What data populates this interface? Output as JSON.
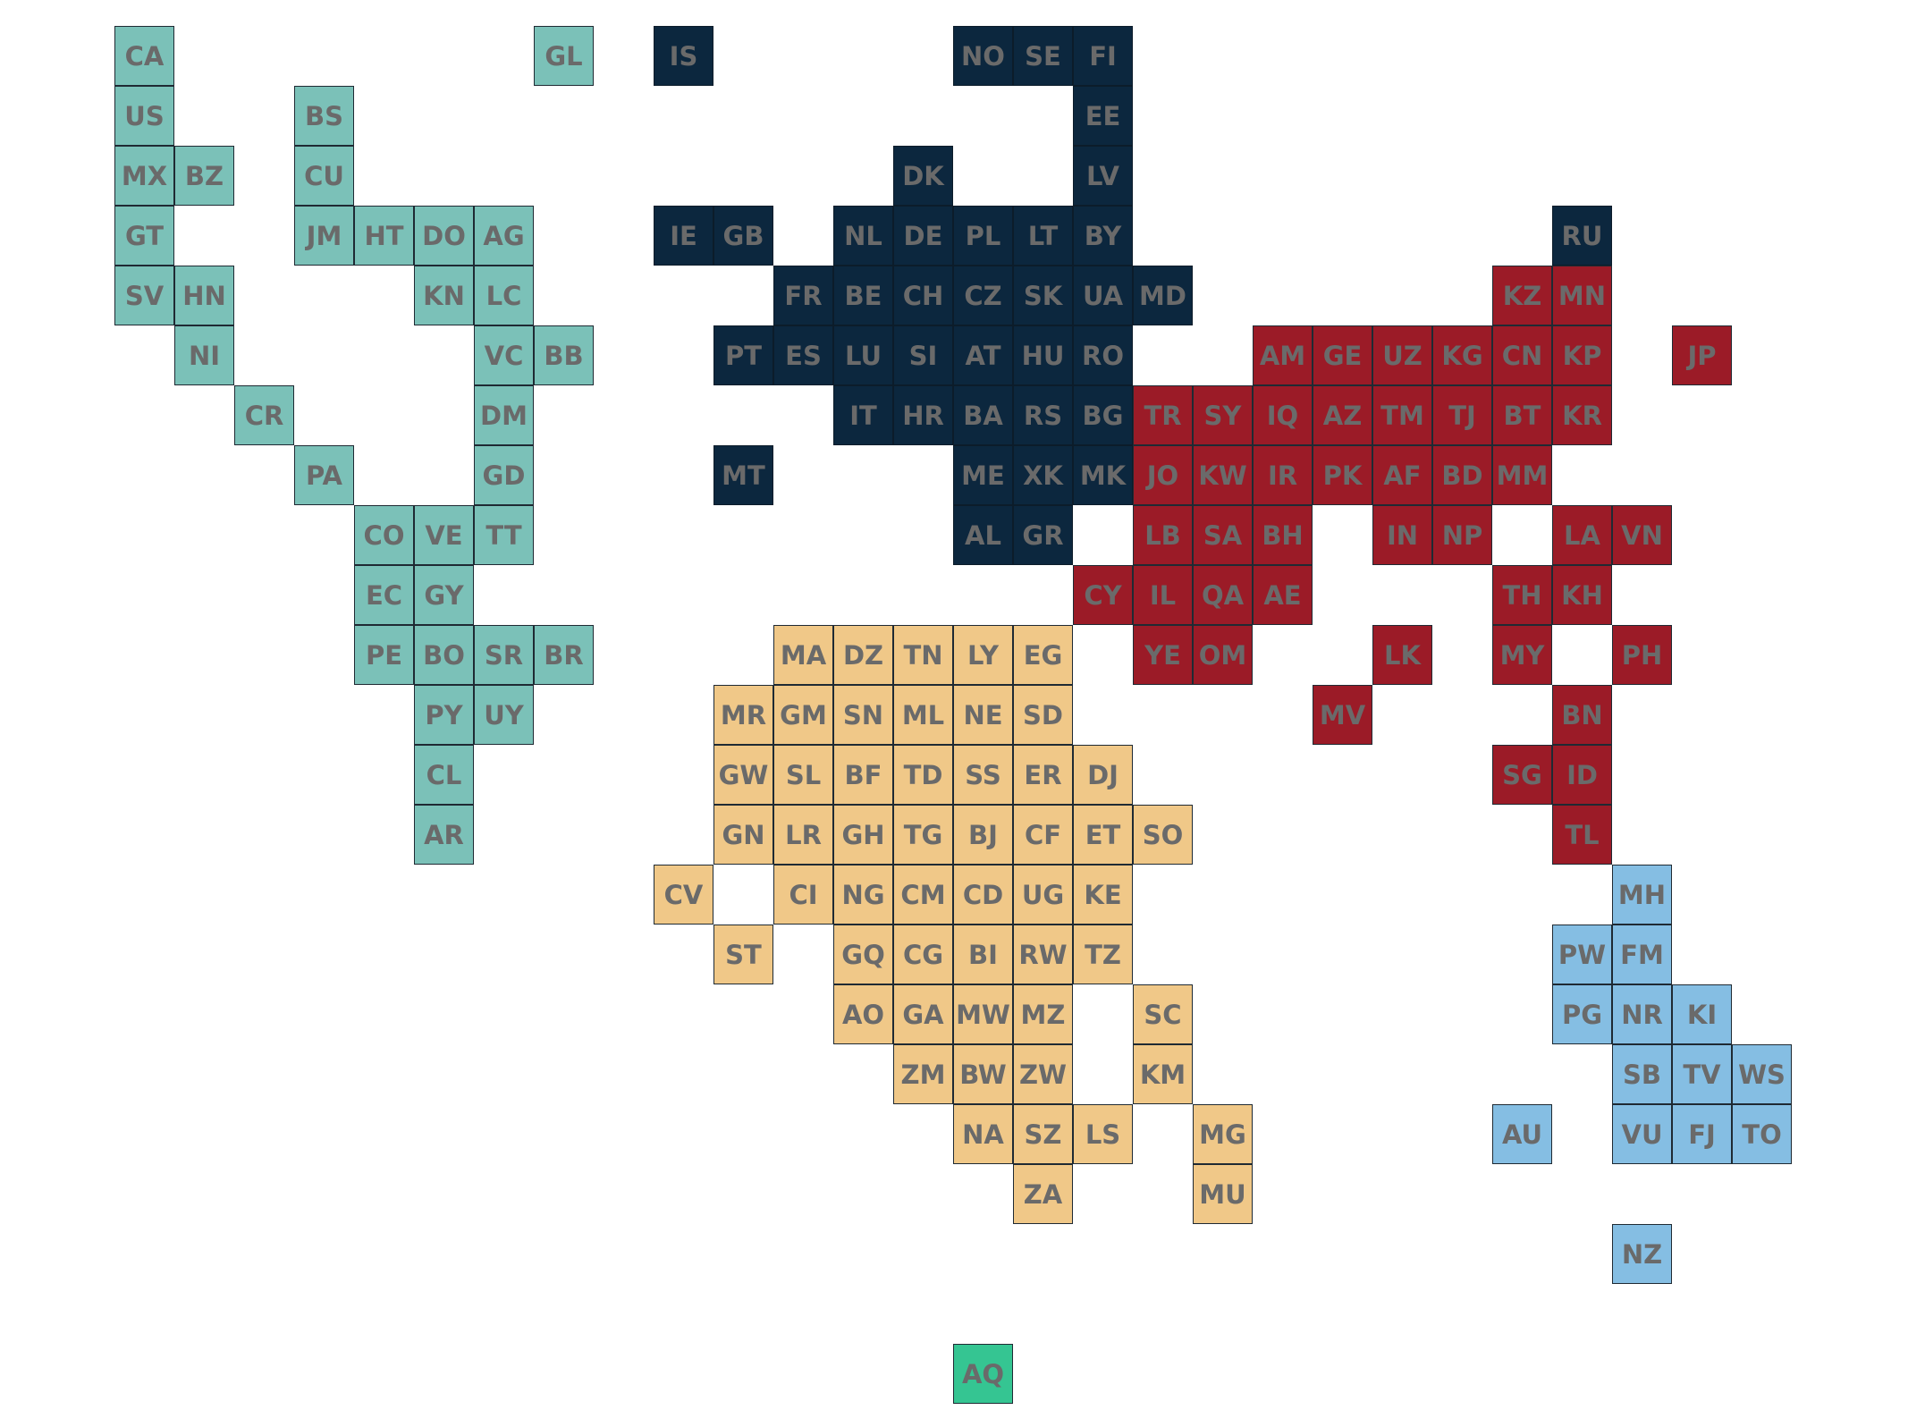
{
  "colors": {
    "americas": "#7bc1b8",
    "europe": "#0c273e",
    "asia": "#9b1b27",
    "africa": "#f0c888",
    "oceania": "#85bee3",
    "antarctica": "#35c592",
    "label": "#6a6a6a"
  },
  "groups": [
    {
      "region": "americas",
      "tiles": [
        {
          "code": "CA",
          "col": 1,
          "row": 0
        },
        {
          "code": "GL",
          "col": 8,
          "row": 0
        },
        {
          "code": "US",
          "col": 1,
          "row": 1
        },
        {
          "code": "BS",
          "col": 4,
          "row": 1
        },
        {
          "code": "MX",
          "col": 1,
          "row": 2
        },
        {
          "code": "BZ",
          "col": 2,
          "row": 2
        },
        {
          "code": "CU",
          "col": 4,
          "row": 2
        },
        {
          "code": "GT",
          "col": 1,
          "row": 3
        },
        {
          "code": "JM",
          "col": 4,
          "row": 3
        },
        {
          "code": "HT",
          "col": 5,
          "row": 3
        },
        {
          "code": "DO",
          "col": 6,
          "row": 3
        },
        {
          "code": "AG",
          "col": 7,
          "row": 3
        },
        {
          "code": "SV",
          "col": 1,
          "row": 4
        },
        {
          "code": "HN",
          "col": 2,
          "row": 4
        },
        {
          "code": "KN",
          "col": 6,
          "row": 4
        },
        {
          "code": "LC",
          "col": 7,
          "row": 4
        },
        {
          "code": "NI",
          "col": 2,
          "row": 5
        },
        {
          "code": "VC",
          "col": 7,
          "row": 5
        },
        {
          "code": "BB",
          "col": 8,
          "row": 5
        },
        {
          "code": "CR",
          "col": 3,
          "row": 6
        },
        {
          "code": "DM",
          "col": 7,
          "row": 6
        },
        {
          "code": "PA",
          "col": 4,
          "row": 7
        },
        {
          "code": "GD",
          "col": 7,
          "row": 7
        },
        {
          "code": "CO",
          "col": 5,
          "row": 8
        },
        {
          "code": "VE",
          "col": 6,
          "row": 8
        },
        {
          "code": "TT",
          "col": 7,
          "row": 8
        },
        {
          "code": "EC",
          "col": 5,
          "row": 9
        },
        {
          "code": "GY",
          "col": 6,
          "row": 9
        },
        {
          "code": "PE",
          "col": 5,
          "row": 10
        },
        {
          "code": "BO",
          "col": 6,
          "row": 10
        },
        {
          "code": "SR",
          "col": 7,
          "row": 10
        },
        {
          "code": "BR",
          "col": 8,
          "row": 10
        },
        {
          "code": "PY",
          "col": 6,
          "row": 11
        },
        {
          "code": "UY",
          "col": 7,
          "row": 11
        },
        {
          "code": "CL",
          "col": 6,
          "row": 12
        },
        {
          "code": "AR",
          "col": 6,
          "row": 13
        }
      ]
    },
    {
      "region": "europe",
      "tiles": [
        {
          "code": "IS",
          "col": 10,
          "row": 0
        },
        {
          "code": "NO",
          "col": 15,
          "row": 0
        },
        {
          "code": "SE",
          "col": 16,
          "row": 0
        },
        {
          "code": "FI",
          "col": 17,
          "row": 0
        },
        {
          "code": "EE",
          "col": 17,
          "row": 1
        },
        {
          "code": "DK",
          "col": 14,
          "row": 2
        },
        {
          "code": "LV",
          "col": 17,
          "row": 2
        },
        {
          "code": "IE",
          "col": 10,
          "row": 3
        },
        {
          "code": "GB",
          "col": 11,
          "row": 3
        },
        {
          "code": "NL",
          "col": 13,
          "row": 3
        },
        {
          "code": "DE",
          "col": 14,
          "row": 3
        },
        {
          "code": "PL",
          "col": 15,
          "row": 3
        },
        {
          "code": "LT",
          "col": 16,
          "row": 3
        },
        {
          "code": "BY",
          "col": 17,
          "row": 3
        },
        {
          "code": "RU",
          "col": 25,
          "row": 3
        },
        {
          "code": "FR",
          "col": 12,
          "row": 4
        },
        {
          "code": "BE",
          "col": 13,
          "row": 4
        },
        {
          "code": "CH",
          "col": 14,
          "row": 4
        },
        {
          "code": "CZ",
          "col": 15,
          "row": 4
        },
        {
          "code": "SK",
          "col": 16,
          "row": 4
        },
        {
          "code": "UA",
          "col": 17,
          "row": 4
        },
        {
          "code": "MD",
          "col": 18,
          "row": 4
        },
        {
          "code": "PT",
          "col": 11,
          "row": 5
        },
        {
          "code": "ES",
          "col": 12,
          "row": 5
        },
        {
          "code": "LU",
          "col": 13,
          "row": 5
        },
        {
          "code": "SI",
          "col": 14,
          "row": 5
        },
        {
          "code": "AT",
          "col": 15,
          "row": 5
        },
        {
          "code": "HU",
          "col": 16,
          "row": 5
        },
        {
          "code": "RO",
          "col": 17,
          "row": 5
        },
        {
          "code": "IT",
          "col": 13,
          "row": 6
        },
        {
          "code": "HR",
          "col": 14,
          "row": 6
        },
        {
          "code": "BA",
          "col": 15,
          "row": 6
        },
        {
          "code": "RS",
          "col": 16,
          "row": 6
        },
        {
          "code": "BG",
          "col": 17,
          "row": 6
        },
        {
          "code": "MT",
          "col": 11,
          "row": 7
        },
        {
          "code": "ME",
          "col": 15,
          "row": 7
        },
        {
          "code": "XK",
          "col": 16,
          "row": 7
        },
        {
          "code": "MK",
          "col": 17,
          "row": 7
        },
        {
          "code": "AL",
          "col": 15,
          "row": 8
        },
        {
          "code": "GR",
          "col": 16,
          "row": 8
        }
      ]
    },
    {
      "region": "asia",
      "tiles": [
        {
          "code": "KZ",
          "col": 24,
          "row": 4
        },
        {
          "code": "MN",
          "col": 25,
          "row": 4
        },
        {
          "code": "AM",
          "col": 20,
          "row": 5
        },
        {
          "code": "GE",
          "col": 21,
          "row": 5
        },
        {
          "code": "UZ",
          "col": 22,
          "row": 5
        },
        {
          "code": "KG",
          "col": 23,
          "row": 5
        },
        {
          "code": "CN",
          "col": 24,
          "row": 5
        },
        {
          "code": "KP",
          "col": 25,
          "row": 5
        },
        {
          "code": "JP",
          "col": 27,
          "row": 5
        },
        {
          "code": "TR",
          "col": 18,
          "row": 6
        },
        {
          "code": "SY",
          "col": 19,
          "row": 6
        },
        {
          "code": "IQ",
          "col": 20,
          "row": 6
        },
        {
          "code": "AZ",
          "col": 21,
          "row": 6
        },
        {
          "code": "TM",
          "col": 22,
          "row": 6
        },
        {
          "code": "TJ",
          "col": 23,
          "row": 6
        },
        {
          "code": "BT",
          "col": 24,
          "row": 6
        },
        {
          "code": "KR",
          "col": 25,
          "row": 6
        },
        {
          "code": "JO",
          "col": 18,
          "row": 7
        },
        {
          "code": "KW",
          "col": 19,
          "row": 7
        },
        {
          "code": "IR",
          "col": 20,
          "row": 7
        },
        {
          "code": "PK",
          "col": 21,
          "row": 7
        },
        {
          "code": "AF",
          "col": 22,
          "row": 7
        },
        {
          "code": "BD",
          "col": 23,
          "row": 7
        },
        {
          "code": "MM",
          "col": 24,
          "row": 7
        },
        {
          "code": "LB",
          "col": 18,
          "row": 8
        },
        {
          "code": "SA",
          "col": 19,
          "row": 8
        },
        {
          "code": "BH",
          "col": 20,
          "row": 8
        },
        {
          "code": "IN",
          "col": 22,
          "row": 8
        },
        {
          "code": "NP",
          "col": 23,
          "row": 8
        },
        {
          "code": "LA",
          "col": 25,
          "row": 8
        },
        {
          "code": "VN",
          "col": 26,
          "row": 8
        },
        {
          "code": "CY",
          "col": 17,
          "row": 9
        },
        {
          "code": "IL",
          "col": 18,
          "row": 9
        },
        {
          "code": "QA",
          "col": 19,
          "row": 9
        },
        {
          "code": "AE",
          "col": 20,
          "row": 9
        },
        {
          "code": "TH",
          "col": 24,
          "row": 9
        },
        {
          "code": "KH",
          "col": 25,
          "row": 9
        },
        {
          "code": "YE",
          "col": 18,
          "row": 10
        },
        {
          "code": "OM",
          "col": 19,
          "row": 10
        },
        {
          "code": "LK",
          "col": 22,
          "row": 10
        },
        {
          "code": "MY",
          "col": 24,
          "row": 10
        },
        {
          "code": "PH",
          "col": 26,
          "row": 10
        },
        {
          "code": "MV",
          "col": 21,
          "row": 11
        },
        {
          "code": "BN",
          "col": 25,
          "row": 11
        },
        {
          "code": "SG",
          "col": 24,
          "row": 12
        },
        {
          "code": "ID",
          "col": 25,
          "row": 12
        },
        {
          "code": "TL",
          "col": 25,
          "row": 13
        }
      ]
    },
    {
      "region": "africa",
      "tiles": [
        {
          "code": "MA",
          "col": 12,
          "row": 10
        },
        {
          "code": "DZ",
          "col": 13,
          "row": 10
        },
        {
          "code": "TN",
          "col": 14,
          "row": 10
        },
        {
          "code": "LY",
          "col": 15,
          "row": 10
        },
        {
          "code": "EG",
          "col": 16,
          "row": 10
        },
        {
          "code": "MR",
          "col": 11,
          "row": 11
        },
        {
          "code": "GM",
          "col": 12,
          "row": 11
        },
        {
          "code": "SN",
          "col": 13,
          "row": 11
        },
        {
          "code": "ML",
          "col": 14,
          "row": 11
        },
        {
          "code": "NE",
          "col": 15,
          "row": 11
        },
        {
          "code": "SD",
          "col": 16,
          "row": 11
        },
        {
          "code": "GW",
          "col": 11,
          "row": 12
        },
        {
          "code": "SL",
          "col": 12,
          "row": 12
        },
        {
          "code": "BF",
          "col": 13,
          "row": 12
        },
        {
          "code": "TD",
          "col": 14,
          "row": 12
        },
        {
          "code": "SS",
          "col": 15,
          "row": 12
        },
        {
          "code": "ER",
          "col": 16,
          "row": 12
        },
        {
          "code": "DJ",
          "col": 17,
          "row": 12
        },
        {
          "code": "GN",
          "col": 11,
          "row": 13
        },
        {
          "code": "LR",
          "col": 12,
          "row": 13
        },
        {
          "code": "GH",
          "col": 13,
          "row": 13
        },
        {
          "code": "TG",
          "col": 14,
          "row": 13
        },
        {
          "code": "BJ",
          "col": 15,
          "row": 13
        },
        {
          "code": "CF",
          "col": 16,
          "row": 13
        },
        {
          "code": "ET",
          "col": 17,
          "row": 13
        },
        {
          "code": "SO",
          "col": 18,
          "row": 13
        },
        {
          "code": "CV",
          "col": 10,
          "row": 14
        },
        {
          "code": "CI",
          "col": 12,
          "row": 14
        },
        {
          "code": "NG",
          "col": 13,
          "row": 14
        },
        {
          "code": "CM",
          "col": 14,
          "row": 14
        },
        {
          "code": "CD",
          "col": 15,
          "row": 14
        },
        {
          "code": "UG",
          "col": 16,
          "row": 14
        },
        {
          "code": "KE",
          "col": 17,
          "row": 14
        },
        {
          "code": "ST",
          "col": 11,
          "row": 15
        },
        {
          "code": "GQ",
          "col": 13,
          "row": 15
        },
        {
          "code": "CG",
          "col": 14,
          "row": 15
        },
        {
          "code": "BI",
          "col": 15,
          "row": 15
        },
        {
          "code": "RW",
          "col": 16,
          "row": 15
        },
        {
          "code": "TZ",
          "col": 17,
          "row": 15
        },
        {
          "code": "AO",
          "col": 13,
          "row": 16
        },
        {
          "code": "GA",
          "col": 14,
          "row": 16
        },
        {
          "code": "MW",
          "col": 15,
          "row": 16
        },
        {
          "code": "MZ",
          "col": 16,
          "row": 16
        },
        {
          "code": "SC",
          "col": 18,
          "row": 16
        },
        {
          "code": "ZM",
          "col": 14,
          "row": 17
        },
        {
          "code": "BW",
          "col": 15,
          "row": 17
        },
        {
          "code": "ZW",
          "col": 16,
          "row": 17
        },
        {
          "code": "KM",
          "col": 18,
          "row": 17
        },
        {
          "code": "NA",
          "col": 15,
          "row": 18
        },
        {
          "code": "SZ",
          "col": 16,
          "row": 18
        },
        {
          "code": "LS",
          "col": 17,
          "row": 18
        },
        {
          "code": "MG",
          "col": 19,
          "row": 18
        },
        {
          "code": "ZA",
          "col": 16,
          "row": 19
        },
        {
          "code": "MU",
          "col": 19,
          "row": 19
        }
      ]
    },
    {
      "region": "oceania",
      "tiles": [
        {
          "code": "MH",
          "col": 26,
          "row": 14
        },
        {
          "code": "PW",
          "col": 25,
          "row": 15
        },
        {
          "code": "FM",
          "col": 26,
          "row": 15
        },
        {
          "code": "PG",
          "col": 25,
          "row": 16
        },
        {
          "code": "NR",
          "col": 26,
          "row": 16
        },
        {
          "code": "KI",
          "col": 27,
          "row": 16
        },
        {
          "code": "SB",
          "col": 26,
          "row": 17
        },
        {
          "code": "TV",
          "col": 27,
          "row": 17
        },
        {
          "code": "WS",
          "col": 28,
          "row": 17
        },
        {
          "code": "AU",
          "col": 24,
          "row": 18
        },
        {
          "code": "VU",
          "col": 26,
          "row": 18
        },
        {
          "code": "FJ",
          "col": 27,
          "row": 18
        },
        {
          "code": "TO",
          "col": 28,
          "row": 18
        },
        {
          "code": "NZ",
          "col": 26,
          "row": 20
        }
      ]
    },
    {
      "region": "antarctica",
      "tiles": [
        {
          "code": "AQ",
          "col": 15,
          "row": 22
        }
      ]
    }
  ]
}
